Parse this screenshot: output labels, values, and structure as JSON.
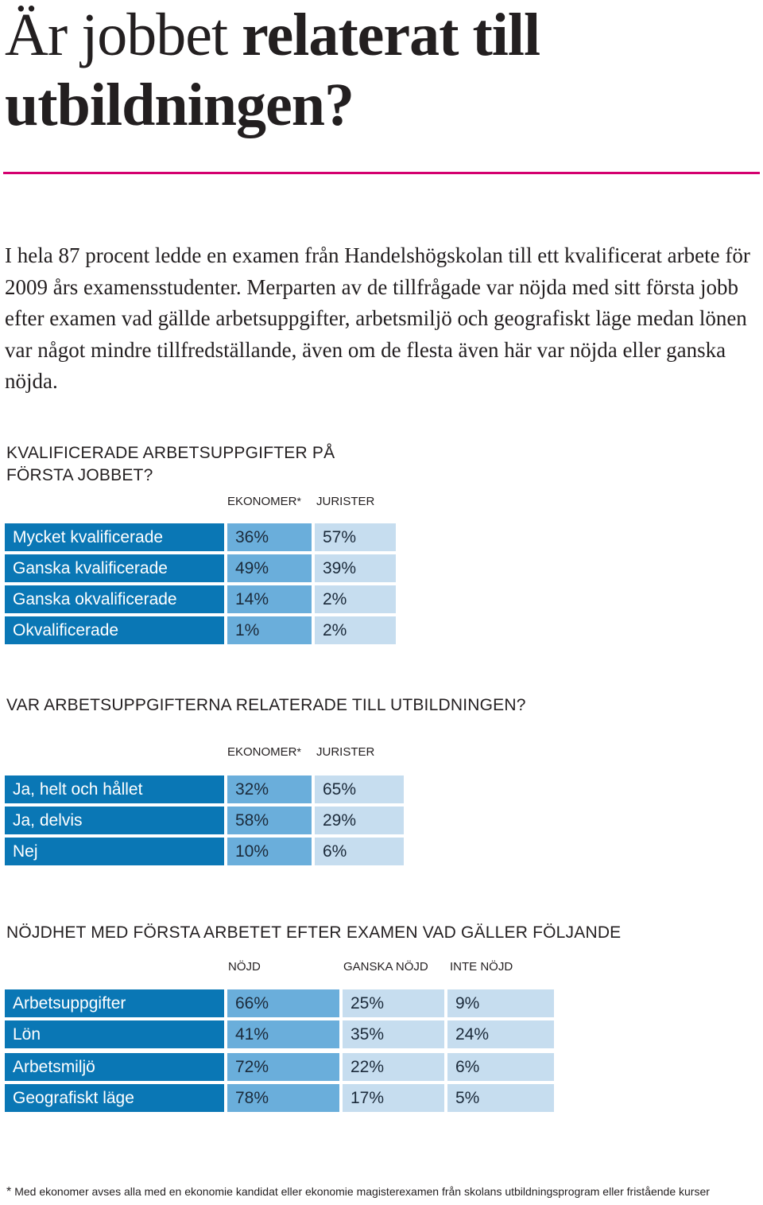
{
  "title": {
    "regular": "Är jobbet ",
    "bold": "relaterat till utbildningen?"
  },
  "intro": "I hela 87 procent ledde en examen från Handelshögskolan till ett kvalificerat arbete för 2009 års examensstudenter. Merparten av de tillfrågade var nöjda med sitt första jobb efter examen vad gällde arbetsuppgifter, arbetsmiljö och geografiskt läge medan lönen var något mindre tillfredställande, även om de flesta även här var nöjda eller ganska nöjda.",
  "colors": {
    "accent_rule": "#d4006f",
    "label_blue": "#0a77b5",
    "mid_blue": "#6aaedb",
    "light_blue": "#c6ddef"
  },
  "table1": {
    "title": "Kvalificerade arbetsuppgifter på första jobbet?",
    "headers": [
      "Ekonomer",
      "Jurister"
    ],
    "star": "*",
    "rows": [
      {
        "label": "Mycket kvalificerade",
        "values": [
          "36%",
          "57%"
        ]
      },
      {
        "label": "Ganska kvalificerade",
        "values": [
          "49%",
          "39%"
        ]
      },
      {
        "label": "Ganska okvalificerade",
        "values": [
          "14%",
          "2%"
        ]
      },
      {
        "label": "Okvalificerade",
        "values": [
          "1%",
          "2%"
        ]
      }
    ]
  },
  "table2": {
    "title": "Var arbetsuppgifterna relaterade till utbildningen?",
    "headers": [
      "Ekonomer",
      "Jurister"
    ],
    "star": "*",
    "rows": [
      {
        "label": "Ja, helt och hållet",
        "values": [
          "32%",
          "65%"
        ]
      },
      {
        "label": "Ja, delvis",
        "values": [
          "58%",
          "29%"
        ]
      },
      {
        "label": "Nej",
        "values": [
          "10%",
          "6%"
        ]
      }
    ]
  },
  "table3": {
    "title": "Nöjdhet med första arbetet efter examen vad gäller följande",
    "headers": [
      "Nöjd",
      "Ganska nöjd",
      "Inte nöjd"
    ],
    "rows": [
      {
        "label": "Arbetsuppgifter",
        "values": [
          "66%",
          "25%",
          "9%"
        ]
      },
      {
        "label": "Lön",
        "values": [
          "41%",
          "35%",
          "24%"
        ]
      },
      {
        "label": "Arbetsmiljö",
        "values": [
          "72%",
          "22%",
          "6%"
        ]
      },
      {
        "label": "Geografiskt läge",
        "values": [
          "78%",
          "17%",
          "5%"
        ]
      }
    ]
  },
  "footnote": {
    "star": "*",
    "text": "Med ekonomer avses alla med en ekonomie kandidat eller ekonomie magisterexamen från skolans utbildningsprogram eller fristående kurser"
  }
}
